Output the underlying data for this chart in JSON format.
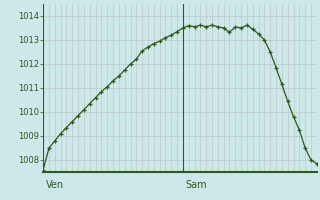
{
  "background_color": "#cce8e8",
  "line_color": "#2d5a1b",
  "marker_color": "#2d5a1b",
  "grid_color_v": "#c0c8c8",
  "grid_color_h": "#c0c8c8",
  "axis_color": "#2d5a1b",
  "tick_label_color": "#2d5a1b",
  "ylim": [
    1007.5,
    1014.5
  ],
  "yticks": [
    1008,
    1009,
    1010,
    1011,
    1012,
    1013,
    1014
  ],
  "x_values": [
    0,
    1,
    2,
    3,
    4,
    5,
    6,
    7,
    8,
    9,
    10,
    11,
    12,
    13,
    14,
    15,
    16,
    17,
    18,
    19,
    20,
    21,
    22,
    23,
    24,
    25,
    26,
    27,
    28,
    29,
    30,
    31,
    32,
    33,
    34,
    35,
    36,
    37,
    38,
    39,
    40,
    41,
    42,
    43,
    44,
    45,
    46,
    47
  ],
  "y_values": [
    1007.6,
    1008.5,
    1008.8,
    1009.1,
    1009.35,
    1009.6,
    1009.85,
    1010.1,
    1010.35,
    1010.6,
    1010.85,
    1011.05,
    1011.3,
    1011.5,
    1011.75,
    1012.0,
    1012.2,
    1012.55,
    1012.7,
    1012.85,
    1012.95,
    1013.1,
    1013.2,
    1013.35,
    1013.5,
    1013.6,
    1013.55,
    1013.62,
    1013.55,
    1013.62,
    1013.55,
    1013.5,
    1013.32,
    1013.55,
    1013.5,
    1013.62,
    1013.45,
    1013.25,
    1013.0,
    1012.5,
    1011.85,
    1011.15,
    1010.45,
    1009.8,
    1009.25,
    1008.5,
    1008.0,
    1007.85
  ],
  "xlim": [
    0,
    47
  ],
  "num_vertical_grid_lines": 47,
  "day_ticks": [
    {
      "label": "Ven",
      "x": 0
    },
    {
      "label": "Sam",
      "x": 24
    }
  ]
}
